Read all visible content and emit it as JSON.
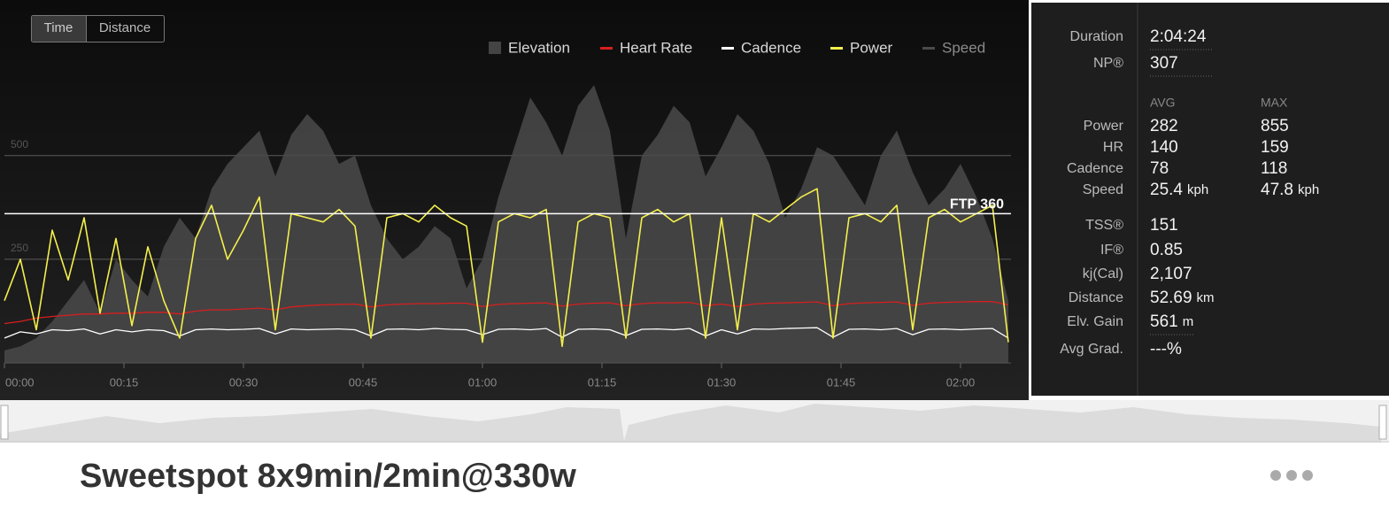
{
  "toggle": [
    "Time",
    "Distance"
  ],
  "chart_data": {
    "type": "line",
    "x": [
      0,
      2,
      4,
      6,
      8,
      10,
      12,
      14,
      16,
      18,
      20,
      22,
      24,
      26,
      28,
      30,
      32,
      34,
      36,
      38,
      40,
      42,
      44,
      46,
      48,
      50,
      52,
      54,
      56,
      58,
      60,
      62,
      64,
      66,
      68,
      70,
      72,
      74,
      76,
      78,
      80,
      82,
      84,
      86,
      88,
      90,
      92,
      94,
      96,
      98,
      100,
      102,
      104,
      106,
      108,
      110,
      112,
      114,
      116,
      118,
      120,
      122,
      124,
      126
    ],
    "xlim": [
      0,
      126.5
    ],
    "xticks": [
      {
        "value": 0,
        "label": "00:00"
      },
      {
        "value": 15,
        "label": "00:15"
      },
      {
        "value": 30,
        "label": "00:30"
      },
      {
        "value": 45,
        "label": "00:45"
      },
      {
        "value": 60,
        "label": "01:00"
      },
      {
        "value": 75,
        "label": "01:15"
      },
      {
        "value": 90,
        "label": "01:30"
      },
      {
        "value": 105,
        "label": "01:45"
      },
      {
        "value": 120,
        "label": "02:00"
      }
    ],
    "ylim": [
      0,
      700
    ],
    "yticks": [
      250,
      500
    ],
    "grid": true,
    "ftp": {
      "value": 360,
      "label": "FTP 360",
      "color": "#ffffff"
    },
    "series": [
      {
        "name": "Elevation",
        "color": "#4a4a4a",
        "style": "area",
        "values": [
          30,
          40,
          60,
          100,
          150,
          200,
          120,
          250,
          200,
          160,
          280,
          350,
          300,
          420,
          480,
          520,
          560,
          450,
          550,
          600,
          560,
          480,
          500,
          380,
          300,
          250,
          280,
          330,
          300,
          180,
          250,
          400,
          520,
          640,
          580,
          500,
          620,
          670,
          560,
          300,
          500,
          550,
          620,
          580,
          450,
          520,
          600,
          560,
          480,
          350,
          420,
          520,
          500,
          440,
          380,
          500,
          560,
          460,
          380,
          420,
          480,
          400,
          300,
          150
        ]
      },
      {
        "name": "Heart Rate",
        "color": "#d81e1e",
        "style": "line",
        "values": [
          95,
          100,
          108,
          112,
          115,
          118,
          118,
          120,
          120,
          122,
          122,
          118,
          125,
          128,
          128,
          130,
          132,
          128,
          135,
          138,
          140,
          141,
          142,
          135,
          140,
          142,
          143,
          143,
          144,
          144,
          136,
          141,
          143,
          144,
          145,
          137,
          142,
          144,
          145,
          138,
          143,
          145,
          145,
          146,
          138,
          142,
          136,
          142,
          144,
          145,
          146,
          147,
          138,
          143,
          145,
          146,
          147,
          139,
          144,
          146,
          147,
          148,
          148,
          140
        ]
      },
      {
        "name": "Cadence",
        "color": "#ffffff",
        "style": "line",
        "values": [
          60,
          75,
          70,
          80,
          78,
          82,
          70,
          80,
          75,
          80,
          78,
          65,
          80,
          82,
          80,
          81,
          83,
          70,
          82,
          80,
          81,
          82,
          80,
          65,
          81,
          82,
          80,
          83,
          81,
          80,
          68,
          81,
          82,
          80,
          83,
          62,
          81,
          82,
          80,
          66,
          81,
          82,
          80,
          83,
          65,
          80,
          70,
          82,
          81,
          83,
          84,
          85,
          62,
          81,
          82,
          80,
          83,
          68,
          81,
          82,
          80,
          82,
          83,
          60
        ]
      },
      {
        "name": "Power",
        "color": "#f4ef4c",
        "style": "line",
        "values": [
          150,
          250,
          80,
          320,
          200,
          350,
          120,
          300,
          90,
          280,
          150,
          60,
          300,
          380,
          250,
          320,
          400,
          80,
          360,
          350,
          340,
          370,
          330,
          60,
          350,
          360,
          340,
          380,
          350,
          330,
          50,
          340,
          360,
          350,
          370,
          40,
          340,
          360,
          350,
          60,
          350,
          370,
          340,
          360,
          60,
          350,
          80,
          360,
          340,
          370,
          400,
          420,
          60,
          350,
          360,
          340,
          380,
          80,
          350,
          370,
          340,
          360,
          380,
          50
        ]
      },
      {
        "name": "Speed",
        "color": "#555555",
        "style": "line",
        "hidden": true,
        "values": [
          null,
          null,
          null,
          null,
          null,
          null,
          null,
          null,
          null,
          null,
          null,
          null,
          null,
          null,
          null,
          null,
          null,
          null,
          null,
          null,
          null,
          null,
          null,
          null,
          null,
          null,
          null,
          null,
          null,
          null,
          null,
          null,
          null,
          null,
          null,
          null,
          null,
          null,
          null,
          null,
          null,
          null,
          null,
          null,
          null,
          null,
          null,
          null,
          null,
          null,
          null,
          null,
          null,
          null,
          null,
          null,
          null,
          null,
          null,
          null,
          null,
          null,
          null,
          null
        ]
      }
    ]
  },
  "stats": {
    "top": [
      {
        "label": "Duration",
        "value": "2:04:24"
      },
      {
        "label": "NP®",
        "value": "307"
      }
    ],
    "columns": [
      "AVG",
      "MAX"
    ],
    "metrics": [
      {
        "label": "Power",
        "avg": "282",
        "max": "855"
      },
      {
        "label": "HR",
        "avg": "140",
        "max": "159"
      },
      {
        "label": "Cadence",
        "avg": "78",
        "max": "118"
      },
      {
        "label": "Speed",
        "avg": "25.4",
        "avg_unit": "kph",
        "max": "47.8",
        "max_unit": "kph"
      }
    ],
    "totals": [
      {
        "label": "TSS®",
        "value": "151"
      },
      {
        "label": "IF®",
        "value": "0.85"
      },
      {
        "label": "kj(Cal)",
        "value": "2,107"
      },
      {
        "label": "Distance",
        "value": "52.69",
        "unit": "km"
      },
      {
        "label": "Elv. Gain",
        "value": "561",
        "unit": "m"
      },
      {
        "label": "Avg Grad.",
        "value": "---%"
      }
    ]
  },
  "workout_title": "Sweetspot 8x9min/2min@330w"
}
